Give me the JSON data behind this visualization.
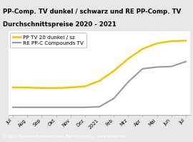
{
  "title_line1": "PP-Comp. TV dunkel / schwarz und RE PP-Comp. TV",
  "title_line2": "Durchschnittspreise 2020 - 2021",
  "title_bg": "#f5c400",
  "title_color": "#000000",
  "footer_text": "© 2021 Kunststoff Information, Bad Homburg - www.kiweb.de",
  "footer_bg": "#7a7a7a",
  "footer_color": "#ffffff",
  "x_labels": [
    "Jul",
    "Aug",
    "Sep",
    "Okt",
    "Nov",
    "Dez",
    "2021",
    "Feb",
    "Mrz",
    "Apr",
    "Mai",
    "Jun",
    "Jul"
  ],
  "series": [
    {
      "label": "PP TV 20 dunkel / sz",
      "color": "#f5c400",
      "linewidth": 1.8,
      "values": [
        1.08,
        1.08,
        1.07,
        1.07,
        1.08,
        1.1,
        1.2,
        1.38,
        1.6,
        1.78,
        1.88,
        1.92,
        1.93
      ]
    },
    {
      "label": "RE PP-C Compounds TV",
      "color": "#999999",
      "linewidth": 1.5,
      "values": [
        0.72,
        0.72,
        0.72,
        0.72,
        0.72,
        0.72,
        0.73,
        0.88,
        1.18,
        1.42,
        1.45,
        1.46,
        1.55
      ]
    }
  ],
  "ylim": [
    0.58,
    2.1
  ],
  "chart_bg": "#e8e8e8",
  "plot_bg": "#ffffff",
  "grid_color": "#cccccc",
  "legend_fontsize": 5.2,
  "tick_fontsize": 4.8,
  "title_fontsize": 6.2,
  "footer_fontsize": 4.0
}
